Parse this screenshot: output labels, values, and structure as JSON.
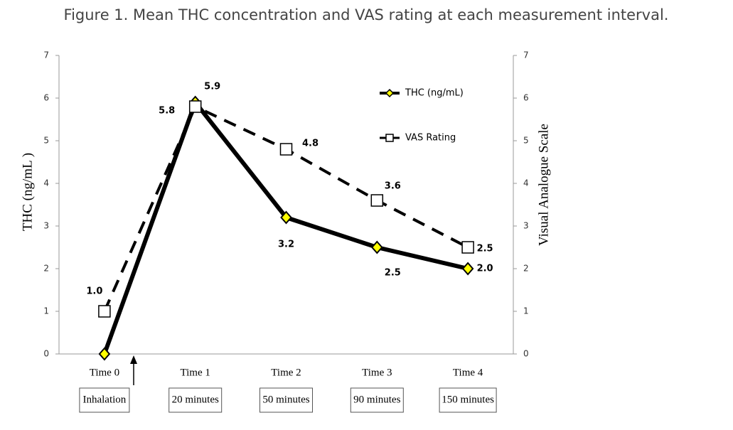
{
  "chart_data": {
    "type": "line",
    "title": "Figure 1. Mean THC concentration and VAS rating at each measurement interval.",
    "y_label": "THC (ng/mL )",
    "y2_label": "Visual Analogue Scale",
    "categories": [
      "Time 0",
      "Time 1",
      "Time 2",
      "Time 3",
      "Time 4"
    ],
    "category_notes": [
      "Inhalation",
      "20 minutes",
      "50 minutes",
      "90 minutes",
      "150 minutes"
    ],
    "ylim": [
      0,
      7
    ],
    "yticks": [
      0,
      1,
      2,
      3,
      4,
      5,
      6,
      7
    ],
    "y2lim": [
      0,
      7
    ],
    "y2ticks": [
      0,
      1,
      2,
      3,
      4,
      5,
      6,
      7
    ],
    "legend": "top-right",
    "series": [
      {
        "name": "THC (ng/mL)",
        "color": "#000000",
        "marker": "diamond",
        "marker_color": "#ffff00",
        "dashed": false,
        "values": [
          0,
          5.9,
          3.2,
          2.5,
          2.0
        ],
        "value_labels": [
          null,
          "5.9",
          "3.2",
          "2.5",
          "2.0"
        ]
      },
      {
        "name": "VAS Rating",
        "color": "#000000",
        "marker": "square",
        "marker_color": "#ffffff",
        "dashed": true,
        "axis": "y2",
        "values": [
          1.0,
          5.8,
          4.8,
          3.6,
          2.5
        ],
        "value_labels": [
          "1.0",
          "5.8",
          "4.8",
          "3.6",
          "2.5"
        ]
      }
    ]
  }
}
